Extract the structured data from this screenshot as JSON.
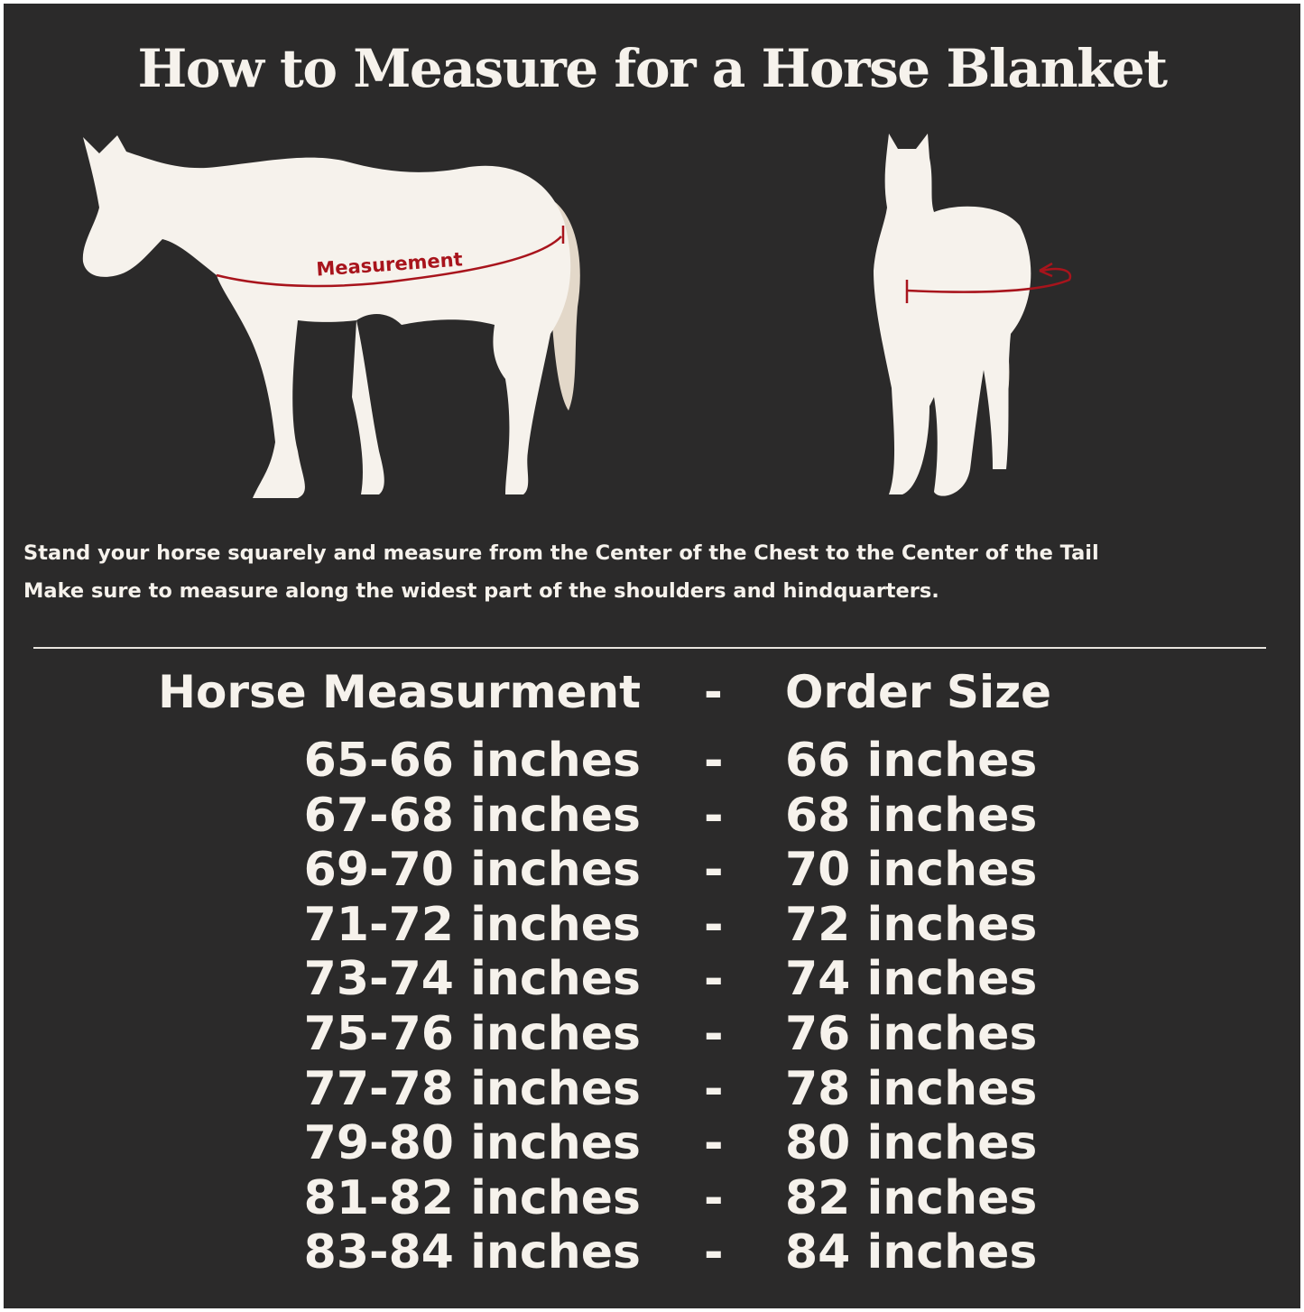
{
  "title": "How to Measure for a Horse Blanket",
  "diagram": {
    "side_view_label": "Measurement",
    "colors": {
      "background": "#2b2a2a",
      "horse": "#f6f2ec",
      "tail": "#e3d8c9",
      "measure_line": "#a8141c"
    }
  },
  "instructions": [
    "Stand your horse squarely and measure from the Center of the Chest to the Center of the Tail",
    "Make sure to measure along the widest part of the shoulders and hindquarters."
  ],
  "table": {
    "header": {
      "measurement": "Horse Measurment",
      "separator": "-",
      "size": "Order Size"
    },
    "rows": [
      {
        "measurement": "65-66 inches",
        "separator": "-",
        "size": "66 inches"
      },
      {
        "measurement": "67-68 inches",
        "separator": "-",
        "size": "68 inches"
      },
      {
        "measurement": "69-70 inches",
        "separator": "-",
        "size": "70 inches"
      },
      {
        "measurement": "71-72 inches",
        "separator": "-",
        "size": "72 inches"
      },
      {
        "measurement": "73-74 inches",
        "separator": "-",
        "size": "74 inches"
      },
      {
        "measurement": "75-76 inches",
        "separator": "-",
        "size": "76 inches"
      },
      {
        "measurement": "77-78 inches",
        "separator": "-",
        "size": "78 inches"
      },
      {
        "measurement": "79-80 inches",
        "separator": "-",
        "size": "80 inches"
      },
      {
        "measurement": "81-82 inches",
        "separator": "-",
        "size": "82 inches"
      },
      {
        "measurement": "83-84 inches",
        "separator": "-",
        "size": "84 inches"
      }
    ]
  }
}
